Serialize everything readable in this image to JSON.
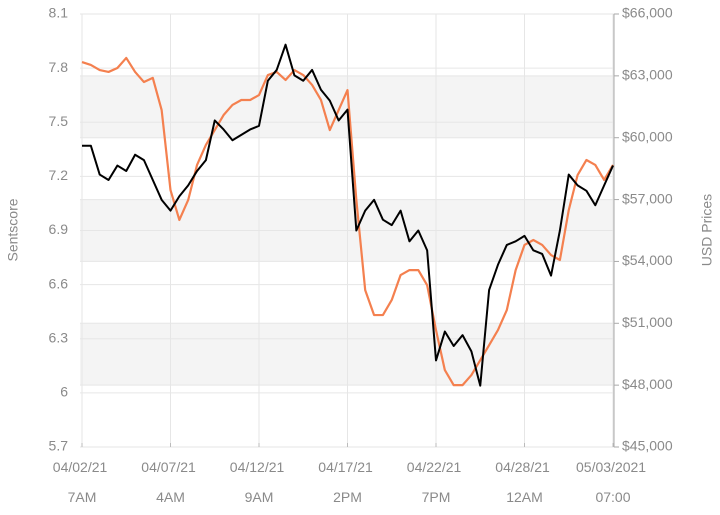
{
  "chart_data": {
    "type": "line",
    "y_label": "Sentscore",
    "y2_label": "USD Prices",
    "categories": [
      "04/02/21 7AM",
      null,
      null,
      null,
      null,
      null,
      null,
      null,
      null,
      null,
      "04/07/21 4AM",
      null,
      null,
      null,
      null,
      null,
      null,
      null,
      null,
      null,
      "04/12/21 9AM",
      null,
      null,
      null,
      null,
      null,
      null,
      null,
      null,
      null,
      "04/17/21 2PM",
      null,
      null,
      null,
      null,
      null,
      null,
      null,
      null,
      null,
      "04/22/21 7PM",
      null,
      null,
      null,
      null,
      null,
      null,
      null,
      null,
      null,
      "04/28/21 12AM",
      null,
      null,
      null,
      null,
      null,
      null,
      null,
      null,
      null,
      "05/03/2021 07:00"
    ],
    "series": [
      {
        "name": "Sentscore",
        "color": "#000000",
        "axis": "y",
        "values": [
          7.37,
          7.37,
          7.21,
          7.18,
          7.26,
          7.23,
          7.32,
          7.29,
          7.18,
          7.07,
          7.01,
          7.09,
          7.15,
          7.23,
          7.29,
          7.51,
          7.46,
          7.4,
          7.43,
          7.46,
          7.48,
          7.73,
          7.79,
          7.93,
          7.76,
          7.73,
          7.79,
          7.68,
          7.62,
          7.51,
          7.57,
          6.9,
          7.01,
          7.07,
          6.96,
          6.93,
          7.01,
          6.84,
          6.9,
          6.79,
          6.18,
          6.34,
          6.26,
          6.32,
          6.23,
          6.04,
          6.57,
          6.71,
          6.82,
          6.84,
          6.87,
          6.79,
          6.77,
          6.65,
          6.9,
          7.21,
          7.15,
          7.12,
          7.04,
          7.15,
          7.26
        ]
      },
      {
        "name": "USD Prices",
        "color": "#f4804f",
        "axis": "y2",
        "values": [
          63670,
          63530,
          63280,
          63190,
          63380,
          63870,
          63190,
          62700,
          62900,
          61340,
          57460,
          56010,
          56980,
          58680,
          59650,
          60370,
          61100,
          61590,
          61830,
          61830,
          62070,
          63040,
          63190,
          62800,
          63280,
          63040,
          62560,
          61830,
          60370,
          61340,
          62310,
          56980,
          52610,
          51400,
          51400,
          52130,
          53340,
          53580,
          53580,
          52850,
          50670,
          48730,
          48000,
          48000,
          48490,
          49210,
          49940,
          50670,
          51640,
          53580,
          54800,
          55040,
          54800,
          54310,
          54070,
          56490,
          58190,
          58920,
          58680,
          57950,
          58680
        ]
      }
    ],
    "ylim": [
      5.7,
      8.1
    ],
    "yticks": [
      5.7,
      6,
      6.3,
      6.6,
      6.9,
      7.2,
      7.5,
      7.8,
      8.1
    ],
    "y2lim": [
      45000,
      66000
    ],
    "y2ticks": [
      {
        "value": 45000,
        "label": "$45,000"
      },
      {
        "value": 48000,
        "label": "$48,000"
      },
      {
        "value": 51000,
        "label": "$51,000"
      },
      {
        "value": 54000,
        "label": "$54,000"
      },
      {
        "value": 57000,
        "label": "$57,000"
      },
      {
        "value": 60000,
        "label": "$60,000"
      },
      {
        "value": 63000,
        "label": "$63,000"
      },
      {
        "value": 66000,
        "label": "$66,000"
      }
    ],
    "grid": true
  }
}
